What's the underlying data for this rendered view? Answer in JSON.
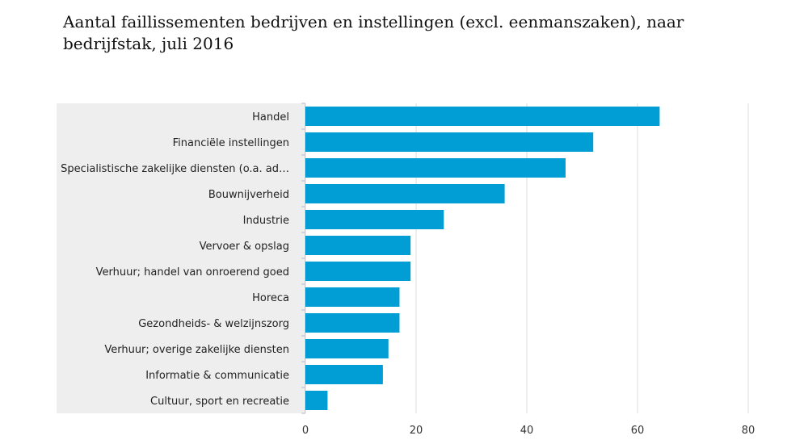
{
  "chart_data": {
    "type": "bar",
    "orientation": "horizontal",
    "title": "Aantal faillissementen bedrijven en instellingen (excl. eenmanszaken), naar bedrijfstak, juli 2016",
    "categories": [
      "Handel",
      "Financiële instellingen",
      "Specialistische zakelijke diensten (o.a. ad…",
      "Bouwnijverheid",
      "Industrie",
      "Vervoer & opslag",
      "Verhuur; handel van onroerend goed",
      "Horeca",
      "Gezondheids- & welzijnszorg",
      "Verhuur; overige zakelijke diensten",
      "Informatie & communicatie",
      "Cultuur, sport en recreatie"
    ],
    "values": [
      64,
      52,
      47,
      36,
      25,
      19,
      19,
      17,
      17,
      15,
      14,
      4
    ],
    "xlim": [
      0,
      80
    ],
    "xticks": [
      0,
      20,
      40,
      60,
      80
    ],
    "grid": true,
    "bar_color": "#009ed4",
    "label_panel_color": "#eeeeee",
    "grid_color": "#dddddd"
  }
}
